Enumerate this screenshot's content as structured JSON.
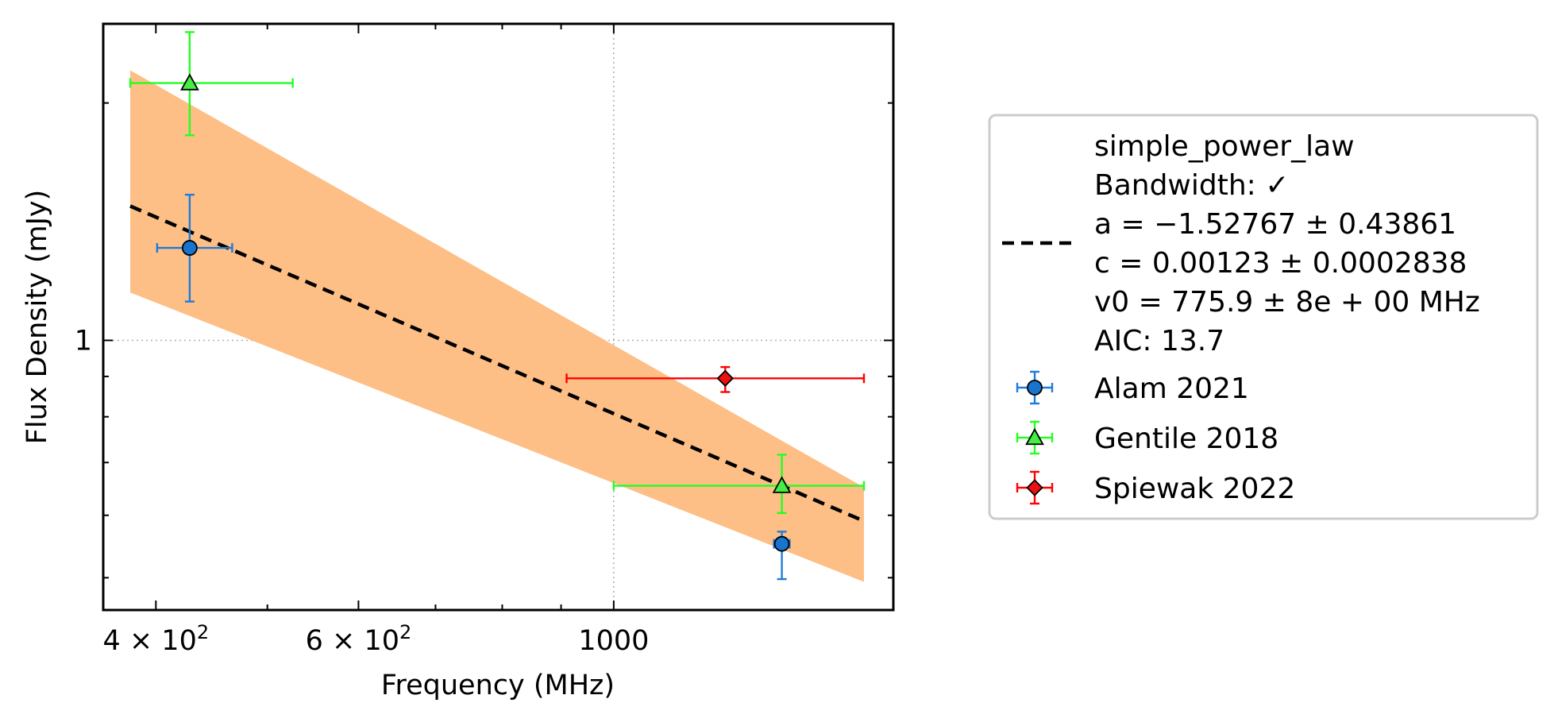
{
  "chart_data": {
    "type": "scatter",
    "xlabel": "Frequency (MHz)",
    "ylabel": "Flux Density (mJy)",
    "xscale": "log",
    "yscale": "log",
    "xlim": [
      360,
      1750
    ],
    "ylim": [
      0.455,
      2.52
    ],
    "xticks": [
      {
        "value": 400,
        "mantissa": "4",
        "base": "10",
        "exponent": "2"
      },
      {
        "value": 600,
        "mantissa": "6",
        "base": "10",
        "exponent": "2"
      },
      {
        "value": 1000,
        "text": "1000"
      }
    ],
    "yticks": [
      {
        "value": 1,
        "text": "1"
      }
    ],
    "grid": {
      "x_at": [
        1000
      ],
      "y_at": [
        1
      ],
      "style": "dotted"
    },
    "legend_position": "outside-right",
    "fit": {
      "name": "simple_power_law",
      "label_lines": [
        "simple_power_law",
        "Bandwidth: ✓",
        "a = −1.52767 ± 0.43861",
        "c = 0.00123 ± 0.0002838",
        "v0 = 775.9 ± 8e + 00 MHz",
        "AIC: 13.7"
      ],
      "x": [
        380,
        1650
      ],
      "y": [
        1.48,
        0.59
      ],
      "band_upper": [
        2.2,
        0.651
      ],
      "band_lower": [
        1.15,
        0.494
      ],
      "line_color": "#000000",
      "band_color": "#fdbf86"
    },
    "series": [
      {
        "name": "Alam 2021",
        "marker": "circle",
        "color": "#1874cd",
        "line_color": "#1f7bd8",
        "points": [
          {
            "x": 428,
            "y": 1.31,
            "xerr": [
              27,
              38
            ],
            "yerr": [
              0.19,
              0.22
            ]
          },
          {
            "x": 1400,
            "y": 0.552,
            "xerr": [
              22,
              22
            ],
            "yerr": [
              0.054,
              0.02
            ]
          }
        ]
      },
      {
        "name": "Gentile 2018",
        "marker": "triangle",
        "color": "#44ee44",
        "line_color": "#22ff22",
        "points": [
          {
            "x": 428,
            "y": 2.12,
            "xerr": [
              48,
              98
            ],
            "yerr": [
              0.3,
              0.34
            ]
          },
          {
            "x": 1400,
            "y": 0.654,
            "xerr": [
              400,
              250
            ],
            "yerr": [
              0.05,
              0.062
            ]
          }
        ]
      },
      {
        "name": "Spiewak 2022",
        "marker": "diamond",
        "color": "#ee1111",
        "line_color": "#ff0000",
        "points": [
          {
            "x": 1250,
            "y": 0.895,
            "xerr": [
              340,
              400
            ],
            "yerr": [
              0.035,
              0.03
            ]
          }
        ]
      }
    ]
  }
}
